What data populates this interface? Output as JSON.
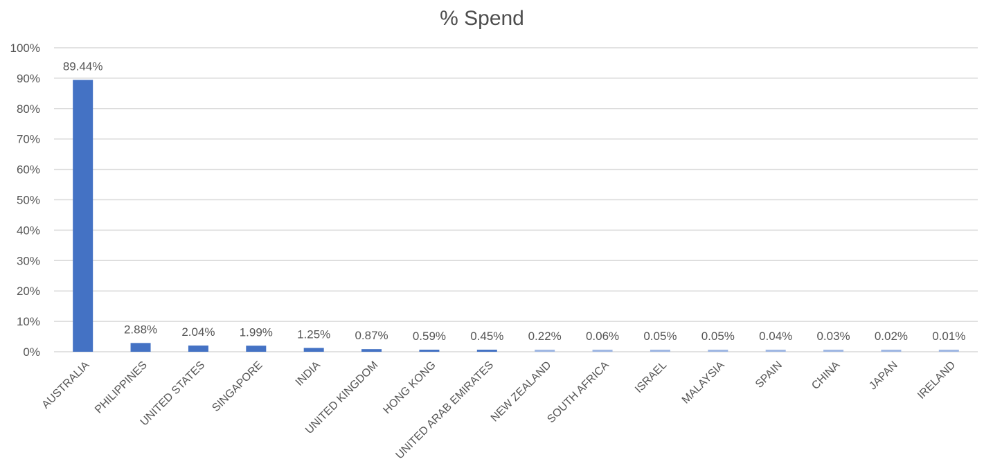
{
  "chart_data": {
    "type": "bar",
    "title": "% Spend",
    "xlabel": "",
    "ylabel": "",
    "ylim": [
      0,
      100
    ],
    "grid": true,
    "legend": "none",
    "y_ticks": [
      "0%",
      "10%",
      "20%",
      "30%",
      "40%",
      "50%",
      "60%",
      "70%",
      "80%",
      "90%",
      "100%"
    ],
    "categories": [
      "AUSTRALIA",
      "PHILIPPINES",
      "UNITED STATES",
      "SINGAPORE",
      "INDIA",
      "UNITED KINGDOM",
      "HONG KONG",
      "UNITED ARAB EMIRATES",
      "NEW ZEALAND",
      "SOUTH AFRICA",
      "ISRAEL",
      "MALAYSIA",
      "SPAIN",
      "CHINA",
      "JAPAN",
      "IRELAND"
    ],
    "values": [
      89.44,
      2.88,
      2.04,
      1.99,
      1.25,
      0.87,
      0.59,
      0.45,
      0.22,
      0.06,
      0.05,
      0.05,
      0.04,
      0.03,
      0.02,
      0.01
    ],
    "data_labels": [
      "89.44%",
      "2.88%",
      "2.04%",
      "1.99%",
      "1.25%",
      "0.87%",
      "0.59%",
      "0.45%",
      "0.22%",
      "0.06%",
      "0.05%",
      "0.05%",
      "0.04%",
      "0.03%",
      "0.02%",
      "0.01%"
    ],
    "colors": {
      "bar_dark": "#4472c4",
      "bar_light": "#9fb7e3",
      "grid": "#d9d9d9",
      "text": "#555555",
      "title": "#4d4d4d"
    }
  }
}
